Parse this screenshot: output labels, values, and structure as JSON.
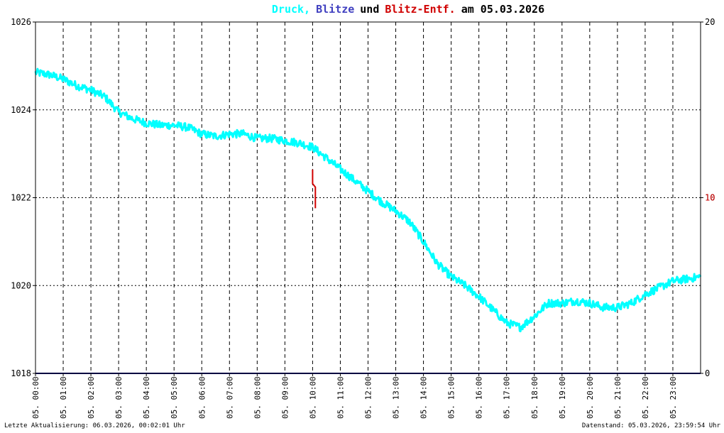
{
  "chart_data": {
    "type": "line",
    "title": {
      "part1": "Druck,",
      "part2": "Blitze",
      "part3": "und",
      "part4": "Blitz-Entf.",
      "part5": "am 05.03.2026"
    },
    "colors": {
      "pressure": "#00ffff",
      "lightning": "#4040c0",
      "distance": "#d00000",
      "title_text": "#000000",
      "baseline": "#00007f",
      "grid": "#000000",
      "border": "#000000"
    },
    "xlim": [
      0,
      24
    ],
    "y_left": {
      "range": [
        1018,
        1026
      ],
      "ticks": [
        "1018",
        "1020",
        "1022",
        "1024",
        "1026"
      ]
    },
    "y_right": {
      "range": [
        0,
        20
      ],
      "ticks": [
        "0",
        "10",
        "20"
      ],
      "overlay_tick": "10"
    },
    "x_ticks": [
      "05. 00:00",
      "05. 01:00",
      "05. 02:00",
      "05. 03:00",
      "05. 04:00",
      "05. 05:00",
      "05. 06:00",
      "05. 07:00",
      "05. 08:00",
      "05. 09:00",
      "05. 10:00",
      "05. 11:00",
      "05. 12:00",
      "05. 13:00",
      "05. 14:00",
      "05. 15:00",
      "05. 16:00",
      "05. 17:00",
      "05. 18:00",
      "05. 19:00",
      "05. 20:00",
      "05. 21:00",
      "05. 22:00",
      "05. 23:00"
    ],
    "grid": true,
    "series": [
      {
        "name": "Druck",
        "x": [
          0,
          0.5,
          1,
          1.5,
          2,
          2.5,
          3,
          3.5,
          4,
          4.5,
          5,
          5.5,
          6,
          6.5,
          7,
          7.5,
          8,
          8.5,
          9,
          9.5,
          10,
          10.5,
          11,
          11.5,
          12,
          12.5,
          13,
          13.5,
          14,
          14.5,
          15,
          15.5,
          16,
          16.5,
          17,
          17.5,
          18,
          18.5,
          19,
          19.5,
          20,
          20.5,
          21,
          21.5,
          22,
          22.5,
          23,
          23.5,
          24
        ],
        "y": [
          1024.85,
          1024.8,
          1024.7,
          1024.55,
          1024.45,
          1024.3,
          1023.95,
          1023.8,
          1023.7,
          1023.65,
          1023.65,
          1023.6,
          1023.45,
          1023.4,
          1023.45,
          1023.45,
          1023.35,
          1023.35,
          1023.3,
          1023.25,
          1023.15,
          1022.9,
          1022.65,
          1022.4,
          1022.15,
          1021.9,
          1021.7,
          1021.45,
          1021.0,
          1020.5,
          1020.2,
          1020.0,
          1019.75,
          1019.45,
          1019.15,
          1019.05,
          1019.3,
          1019.6,
          1019.6,
          1019.65,
          1019.6,
          1019.5,
          1019.5,
          1019.6,
          1019.8,
          1019.95,
          1020.1,
          1020.15,
          1020.2
        ]
      },
      {
        "name": "Blitz-Entf.",
        "x": [
          10.0,
          10.0,
          10.1,
          10.1
        ],
        "y": [
          11.6,
          10.8,
          10.6,
          9.4
        ]
      },
      {
        "name": "Blitze",
        "x": [
          0,
          24
        ],
        "y": [
          0,
          0
        ]
      }
    ],
    "footer_left": "Letzte Aktualisierung: 06.03.2026, 00:02:01 Uhr",
    "footer_right": "Datenstand: 05.03.2026, 23:59:54 Uhr"
  }
}
